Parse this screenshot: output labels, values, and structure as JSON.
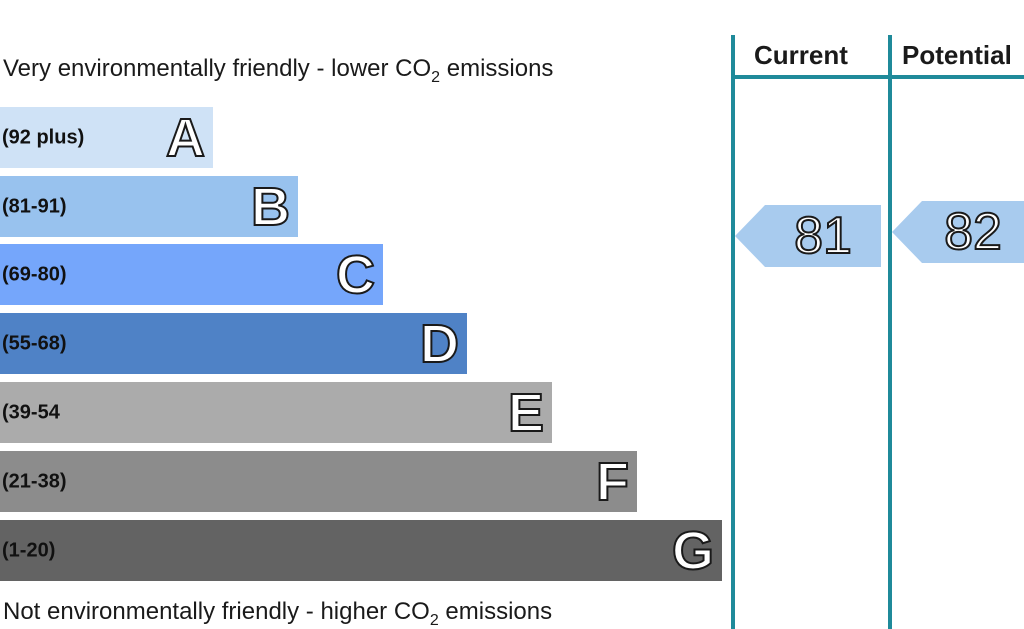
{
  "captions": {
    "top_prefix": "Very environmentally friendly - lower CO",
    "top_sub": "2",
    "top_suffix": " emissions",
    "bottom_prefix": "Not environmentally friendly - higher CO",
    "bottom_sub": "2",
    "bottom_suffix": " emissions"
  },
  "bands": [
    {
      "letter": "A",
      "range": "(92 plus)",
      "color": "#cfe2f6"
    },
    {
      "letter": "B",
      "range": "(81-91)",
      "color": "#98c2ee"
    },
    {
      "letter": "C",
      "range": "(69-80)",
      "color": "#75a6fb"
    },
    {
      "letter": "D",
      "range": "(55-68)",
      "color": "#4f82c6"
    },
    {
      "letter": "E",
      "range": "(39-54",
      "color": "#ababab"
    },
    {
      "letter": "F",
      "range": "(21-38)",
      "color": "#8c8c8c"
    },
    {
      "letter": "G",
      "range": "(1-20)",
      "color": "#636363"
    }
  ],
  "columns": {
    "current_label": "Current",
    "potential_label": "Potential",
    "current_value": "81",
    "potential_value": "82",
    "line_color": "#1f8a9a",
    "arrow_color": "#a8cbee"
  }
}
